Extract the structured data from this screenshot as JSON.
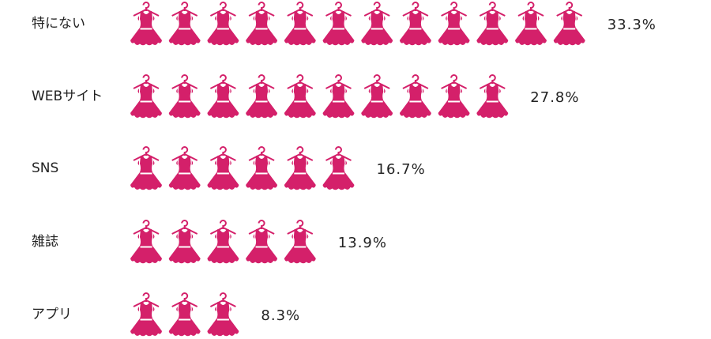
{
  "chart_data": {
    "type": "pictograph",
    "categories": [
      "特にない",
      "WEBサイト",
      "SNS",
      "雑誌",
      "アプリ"
    ],
    "values": [
      33.3,
      27.8,
      16.7,
      13.9,
      8.3
    ],
    "value_labels": [
      "33.3%",
      "27.8%",
      "16.7%",
      "13.9%",
      "8.3%"
    ],
    "color": "#d4206a"
  }
}
